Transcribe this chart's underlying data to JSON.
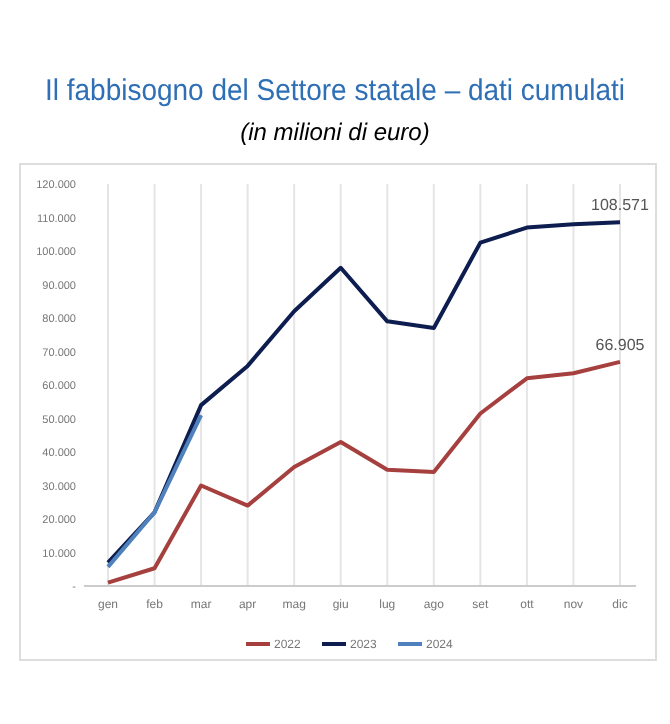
{
  "chart_data": {
    "type": "line",
    "title": "Il fabbisogno del Settore statale – dati cumulati",
    "subtitle": "(in milioni di euro)",
    "categories": [
      "gen",
      "feb",
      "mar",
      "apr",
      "mag",
      "giu",
      "lug",
      "ago",
      "set",
      "ott",
      "nov",
      "dic"
    ],
    "series": [
      {
        "name": "2022",
        "color": "#a5403e",
        "values": [
          1000,
          5300,
          30000,
          24000,
          35500,
          43000,
          34700,
          34000,
          51500,
          62000,
          63500,
          66905
        ],
        "value_labels": [
          null,
          null,
          null,
          null,
          null,
          null,
          null,
          null,
          null,
          null,
          null,
          "66.905"
        ]
      },
      {
        "name": "2023",
        "color": "#0d1d4f",
        "values": [
          7000,
          22000,
          54000,
          65700,
          82000,
          95000,
          79000,
          77000,
          102500,
          107000,
          108000,
          108571
        ],
        "value_labels": [
          null,
          null,
          null,
          null,
          null,
          null,
          null,
          null,
          null,
          null,
          null,
          "108.571"
        ]
      },
      {
        "name": "2024",
        "color": "#4f81bd",
        "values": [
          5700,
          22000,
          51000,
          null,
          null,
          null,
          null,
          null,
          null,
          null,
          null,
          null
        ]
      }
    ],
    "ylim": [
      0,
      120000
    ],
    "yticks": [
      {
        "value": 0,
        "label": "-"
      },
      {
        "value": 10000,
        "label": "10.000"
      },
      {
        "value": 20000,
        "label": "20.000"
      },
      {
        "value": 30000,
        "label": "30.000"
      },
      {
        "value": 40000,
        "label": "40.000"
      },
      {
        "value": 50000,
        "label": "50.000"
      },
      {
        "value": 60000,
        "label": "60.000"
      },
      {
        "value": 70000,
        "label": "70.000"
      },
      {
        "value": 80000,
        "label": "80.000"
      },
      {
        "value": 90000,
        "label": "90.000"
      },
      {
        "value": 100000,
        "label": "100.000"
      },
      {
        "value": 110000,
        "label": "110.000"
      },
      {
        "value": 120000,
        "label": "120.000"
      }
    ],
    "grid": "x",
    "legend": "bottom",
    "marker": "none",
    "line_style": "solid"
  }
}
